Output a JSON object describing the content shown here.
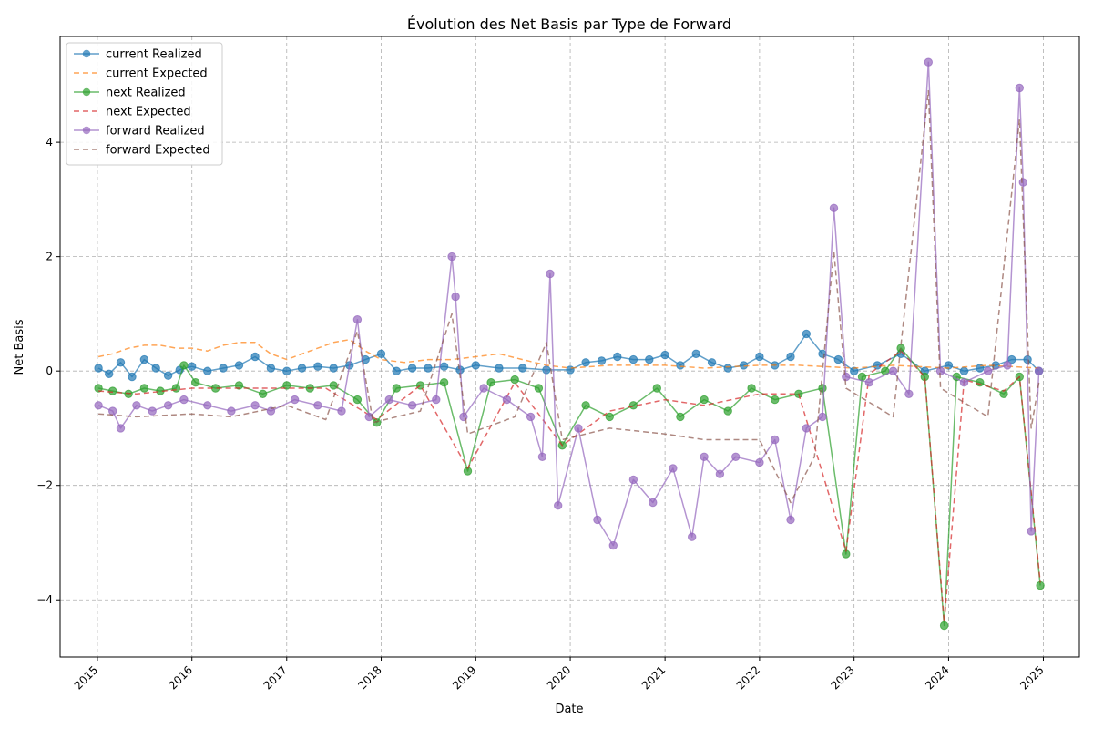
{
  "chart_data": {
    "type": "line",
    "title": "Évolution des Net Basis par Type de Forward",
    "xlabel": "Date",
    "ylabel": "Net Basis",
    "x_type": "date",
    "xlim": [
      "2014-08-10",
      "2025-05-20"
    ],
    "ylim": [
      -5.0,
      5.85
    ],
    "x_ticks": [
      "2015",
      "2016",
      "2017",
      "2018",
      "2019",
      "2020",
      "2021",
      "2022",
      "2023",
      "2024",
      "2025"
    ],
    "y_ticks": [
      -4,
      -2,
      0,
      2,
      4
    ],
    "grid": true,
    "legend_position": "top-left",
    "series": [
      {
        "name": "current Realized",
        "color": "#1f77b4",
        "style": "solid",
        "marker": "circle",
        "points": [
          [
            "2015-01-05",
            0.05
          ],
          [
            "2015-02-15",
            -0.05
          ],
          [
            "2015-04-01",
            0.15
          ],
          [
            "2015-05-15",
            -0.1
          ],
          [
            "2015-07-01",
            0.2
          ],
          [
            "2015-08-15",
            0.05
          ],
          [
            "2015-10-01",
            -0.08
          ],
          [
            "2015-11-15",
            0.02
          ],
          [
            "2016-01-01",
            0.08
          ],
          [
            "2016-03-01",
            0.0
          ],
          [
            "2016-05-01",
            0.05
          ],
          [
            "2016-07-01",
            0.1
          ],
          [
            "2016-09-01",
            0.25
          ],
          [
            "2016-11-01",
            0.05
          ],
          [
            "2017-01-01",
            0.0
          ],
          [
            "2017-03-01",
            0.05
          ],
          [
            "2017-05-01",
            0.08
          ],
          [
            "2017-07-01",
            0.05
          ],
          [
            "2017-09-01",
            0.1
          ],
          [
            "2017-11-01",
            0.2
          ],
          [
            "2018-01-01",
            0.3
          ],
          [
            "2018-03-01",
            0.0
          ],
          [
            "2018-05-01",
            0.05
          ],
          [
            "2018-07-01",
            0.05
          ],
          [
            "2018-09-01",
            0.08
          ],
          [
            "2018-11-01",
            0.02
          ],
          [
            "2019-01-01",
            0.1
          ],
          [
            "2019-04-01",
            0.05
          ],
          [
            "2019-07-01",
            0.05
          ],
          [
            "2019-10-01",
            0.02
          ],
          [
            "2020-01-01",
            0.02
          ],
          [
            "2020-03-01",
            0.15
          ],
          [
            "2020-05-01",
            0.18
          ],
          [
            "2020-07-01",
            0.25
          ],
          [
            "2020-09-01",
            0.2
          ],
          [
            "2020-11-01",
            0.2
          ],
          [
            "2021-01-01",
            0.28
          ],
          [
            "2021-03-01",
            0.1
          ],
          [
            "2021-05-01",
            0.3
          ],
          [
            "2021-07-01",
            0.15
          ],
          [
            "2021-09-01",
            0.05
          ],
          [
            "2021-11-01",
            0.1
          ],
          [
            "2022-01-01",
            0.25
          ],
          [
            "2022-03-01",
            0.1
          ],
          [
            "2022-05-01",
            0.25
          ],
          [
            "2022-07-01",
            0.65
          ],
          [
            "2022-09-01",
            0.3
          ],
          [
            "2022-11-01",
            0.2
          ],
          [
            "2023-01-01",
            0.0
          ],
          [
            "2023-04-01",
            0.1
          ],
          [
            "2023-07-01",
            0.3
          ],
          [
            "2023-10-01",
            0.0
          ],
          [
            "2024-01-01",
            0.1
          ],
          [
            "2024-03-01",
            0.0
          ],
          [
            "2024-05-01",
            0.05
          ],
          [
            "2024-07-01",
            0.1
          ],
          [
            "2024-09-01",
            0.2
          ],
          [
            "2024-11-01",
            0.2
          ],
          [
            "2024-12-15",
            0.0
          ]
        ]
      },
      {
        "name": "current Expected",
        "color": "#ff7f0e",
        "style": "dashed",
        "marker": "none",
        "points": [
          [
            "2015-01-05",
            0.25
          ],
          [
            "2015-03-01",
            0.3
          ],
          [
            "2015-05-01",
            0.4
          ],
          [
            "2015-07-01",
            0.45
          ],
          [
            "2015-09-01",
            0.45
          ],
          [
            "2015-11-01",
            0.4
          ],
          [
            "2016-01-01",
            0.4
          ],
          [
            "2016-03-01",
            0.35
          ],
          [
            "2016-05-01",
            0.45
          ],
          [
            "2016-07-01",
            0.5
          ],
          [
            "2016-09-01",
            0.5
          ],
          [
            "2016-11-01",
            0.3
          ],
          [
            "2017-01-01",
            0.2
          ],
          [
            "2017-04-01",
            0.35
          ],
          [
            "2017-07-01",
            0.5
          ],
          [
            "2017-09-01",
            0.55
          ],
          [
            "2017-11-01",
            0.35
          ],
          [
            "2018-01-01",
            0.2
          ],
          [
            "2018-04-01",
            0.15
          ],
          [
            "2018-07-01",
            0.2
          ],
          [
            "2018-10-01",
            0.2
          ],
          [
            "2019-01-01",
            0.25
          ],
          [
            "2019-04-01",
            0.3
          ],
          [
            "2019-07-01",
            0.2
          ],
          [
            "2019-10-01",
            0.1
          ],
          [
            "2020-01-01",
            0.05
          ],
          [
            "2020-06-01",
            0.1
          ],
          [
            "2021-01-01",
            0.1
          ],
          [
            "2021-06-01",
            0.05
          ],
          [
            "2022-01-01",
            0.1
          ],
          [
            "2022-06-01",
            0.1
          ],
          [
            "2023-01-01",
            0.05
          ],
          [
            "2023-06-01",
            0.1
          ],
          [
            "2024-01-01",
            0.05
          ],
          [
            "2024-06-01",
            0.1
          ],
          [
            "2024-12-15",
            0.05
          ]
        ]
      },
      {
        "name": "next Realized",
        "color": "#2ca02c",
        "style": "solid",
        "marker": "circle",
        "points": [
          [
            "2015-01-05",
            -0.3
          ],
          [
            "2015-03-01",
            -0.35
          ],
          [
            "2015-05-01",
            -0.4
          ],
          [
            "2015-07-01",
            -0.3
          ],
          [
            "2015-09-01",
            -0.35
          ],
          [
            "2015-11-01",
            -0.3
          ],
          [
            "2015-12-01",
            0.1
          ],
          [
            "2016-01-15",
            -0.2
          ],
          [
            "2016-04-01",
            -0.3
          ],
          [
            "2016-07-01",
            -0.25
          ],
          [
            "2016-10-01",
            -0.4
          ],
          [
            "2017-01-01",
            -0.25
          ],
          [
            "2017-04-01",
            -0.3
          ],
          [
            "2017-07-01",
            -0.25
          ],
          [
            "2017-10-01",
            -0.5
          ],
          [
            "2017-12-15",
            -0.9
          ],
          [
            "2018-03-01",
            -0.3
          ],
          [
            "2018-06-01",
            -0.25
          ],
          [
            "2018-09-01",
            -0.2
          ],
          [
            "2018-12-01",
            -1.75
          ],
          [
            "2019-03-01",
            -0.2
          ],
          [
            "2019-06-01",
            -0.15
          ],
          [
            "2019-09-01",
            -0.3
          ],
          [
            "2019-12-01",
            -1.3
          ],
          [
            "2020-03-01",
            -0.6
          ],
          [
            "2020-06-01",
            -0.8
          ],
          [
            "2020-09-01",
            -0.6
          ],
          [
            "2020-12-01",
            -0.3
          ],
          [
            "2021-03-01",
            -0.8
          ],
          [
            "2021-06-01",
            -0.5
          ],
          [
            "2021-09-01",
            -0.7
          ],
          [
            "2021-12-01",
            -0.3
          ],
          [
            "2022-03-01",
            -0.5
          ],
          [
            "2022-06-01",
            -0.4
          ],
          [
            "2022-09-01",
            -0.3
          ],
          [
            "2022-12-01",
            -3.2
          ],
          [
            "2023-02-01",
            -0.1
          ],
          [
            "2023-05-01",
            0.0
          ],
          [
            "2023-07-01",
            0.4
          ],
          [
            "2023-10-01",
            -0.1
          ],
          [
            "2023-12-15",
            -4.45
          ],
          [
            "2024-02-01",
            -0.1
          ],
          [
            "2024-05-01",
            -0.2
          ],
          [
            "2024-08-01",
            -0.4
          ],
          [
            "2024-10-01",
            -0.1
          ],
          [
            "2024-12-20",
            -3.75
          ]
        ]
      },
      {
        "name": "next Expected",
        "color": "#d62728",
        "style": "dashed",
        "marker": "none",
        "points": [
          [
            "2015-01-05",
            -0.35
          ],
          [
            "2015-06-01",
            -0.4
          ],
          [
            "2016-01-01",
            -0.3
          ],
          [
            "2016-06-01",
            -0.3
          ],
          [
            "2017-01-01",
            -0.3
          ],
          [
            "2017-06-01",
            -0.3
          ],
          [
            "2017-12-15",
            -0.85
          ],
          [
            "2018-06-01",
            -0.25
          ],
          [
            "2018-12-01",
            -1.7
          ],
          [
            "2019-06-01",
            -0.2
          ],
          [
            "2019-12-01",
            -1.3
          ],
          [
            "2020-06-01",
            -0.7
          ],
          [
            "2021-01-01",
            -0.5
          ],
          [
            "2021-06-01",
            -0.6
          ],
          [
            "2022-01-01",
            -0.4
          ],
          [
            "2022-06-01",
            -0.4
          ],
          [
            "2022-12-01",
            -3.15
          ],
          [
            "2023-03-01",
            -0.05
          ],
          [
            "2023-07-01",
            0.35
          ],
          [
            "2023-10-01",
            -0.1
          ],
          [
            "2023-12-15",
            -4.4
          ],
          [
            "2024-03-01",
            -0.15
          ],
          [
            "2024-08-01",
            -0.35
          ],
          [
            "2024-10-01",
            -0.1
          ],
          [
            "2024-12-20",
            -3.7
          ]
        ]
      },
      {
        "name": "forward Realized",
        "color": "#9467bd",
        "style": "solid",
        "marker": "circle",
        "points": [
          [
            "2015-01-05",
            -0.6
          ],
          [
            "2015-03-01",
            -0.7
          ],
          [
            "2015-04-01",
            -1.0
          ],
          [
            "2015-06-01",
            -0.6
          ],
          [
            "2015-08-01",
            -0.7
          ],
          [
            "2015-10-01",
            -0.6
          ],
          [
            "2015-12-01",
            -0.5
          ],
          [
            "2016-03-01",
            -0.6
          ],
          [
            "2016-06-01",
            -0.7
          ],
          [
            "2016-09-01",
            -0.6
          ],
          [
            "2016-11-01",
            -0.7
          ],
          [
            "2017-02-01",
            -0.5
          ],
          [
            "2017-05-01",
            -0.6
          ],
          [
            "2017-08-01",
            -0.7
          ],
          [
            "2017-10-01",
            0.9
          ],
          [
            "2017-11-15",
            -0.8
          ],
          [
            "2018-02-01",
            -0.5
          ],
          [
            "2018-05-01",
            -0.6
          ],
          [
            "2018-08-01",
            -0.5
          ],
          [
            "2018-10-01",
            2.0
          ],
          [
            "2018-10-15",
            1.3
          ],
          [
            "2018-11-15",
            -0.8
          ],
          [
            "2019-02-01",
            -0.3
          ],
          [
            "2019-05-01",
            -0.5
          ],
          [
            "2019-08-01",
            -0.8
          ],
          [
            "2019-09-15",
            -1.5
          ],
          [
            "2019-10-15",
            1.7
          ],
          [
            "2019-11-15",
            -2.35
          ],
          [
            "2020-02-01",
            -1.0
          ],
          [
            "2020-04-15",
            -2.6
          ],
          [
            "2020-06-15",
            -3.05
          ],
          [
            "2020-09-01",
            -1.9
          ],
          [
            "2020-11-15",
            -2.3
          ],
          [
            "2021-02-01",
            -1.7
          ],
          [
            "2021-04-15",
            -2.9
          ],
          [
            "2021-06-01",
            -1.5
          ],
          [
            "2021-08-01",
            -1.8
          ],
          [
            "2021-10-01",
            -1.5
          ],
          [
            "2022-01-01",
            -1.6
          ],
          [
            "2022-03-01",
            -1.2
          ],
          [
            "2022-05-01",
            -2.6
          ],
          [
            "2022-07-01",
            -1.0
          ],
          [
            "2022-09-01",
            -0.8
          ],
          [
            "2022-10-15",
            2.85
          ],
          [
            "2022-12-01",
            -0.1
          ],
          [
            "2023-03-01",
            -0.2
          ],
          [
            "2023-06-01",
            0.0
          ],
          [
            "2023-08-01",
            -0.4
          ],
          [
            "2023-10-15",
            5.4
          ],
          [
            "2023-12-01",
            0.0
          ],
          [
            "2024-03-01",
            -0.2
          ],
          [
            "2024-06-01",
            0.0
          ],
          [
            "2024-08-15",
            0.1
          ],
          [
            "2024-10-01",
            4.95
          ],
          [
            "2024-10-15",
            3.3
          ],
          [
            "2024-11-15",
            -2.8
          ],
          [
            "2024-12-15",
            0.0
          ]
        ]
      },
      {
        "name": "forward Expected",
        "color": "#8c564b",
        "style": "dashed",
        "marker": "none",
        "points": [
          [
            "2015-01-05",
            -0.75
          ],
          [
            "2015-06-01",
            -0.8
          ],
          [
            "2016-01-01",
            -0.75
          ],
          [
            "2016-06-01",
            -0.8
          ],
          [
            "2017-01-01",
            -0.6
          ],
          [
            "2017-06-01",
            -0.85
          ],
          [
            "2017-10-01",
            0.7
          ],
          [
            "2017-12-01",
            -0.9
          ],
          [
            "2018-06-01",
            -0.7
          ],
          [
            "2018-10-01",
            1.0
          ],
          [
            "2018-12-01",
            -1.1
          ],
          [
            "2019-06-01",
            -0.8
          ],
          [
            "2019-10-01",
            0.5
          ],
          [
            "2019-12-01",
            -1.2
          ],
          [
            "2020-06-01",
            -1.0
          ],
          [
            "2021-01-01",
            -1.1
          ],
          [
            "2021-06-01",
            -1.2
          ],
          [
            "2022-01-01",
            -1.2
          ],
          [
            "2022-05-01",
            -2.3
          ],
          [
            "2022-08-01",
            -1.5
          ],
          [
            "2022-10-15",
            2.1
          ],
          [
            "2022-12-01",
            -0.3
          ],
          [
            "2023-06-01",
            -0.8
          ],
          [
            "2023-10-15",
            4.9
          ],
          [
            "2023-12-01",
            -0.3
          ],
          [
            "2024-06-01",
            -0.8
          ],
          [
            "2024-10-01",
            4.4
          ],
          [
            "2024-11-15",
            -1.0
          ],
          [
            "2024-12-15",
            -0.2
          ]
        ]
      }
    ]
  }
}
